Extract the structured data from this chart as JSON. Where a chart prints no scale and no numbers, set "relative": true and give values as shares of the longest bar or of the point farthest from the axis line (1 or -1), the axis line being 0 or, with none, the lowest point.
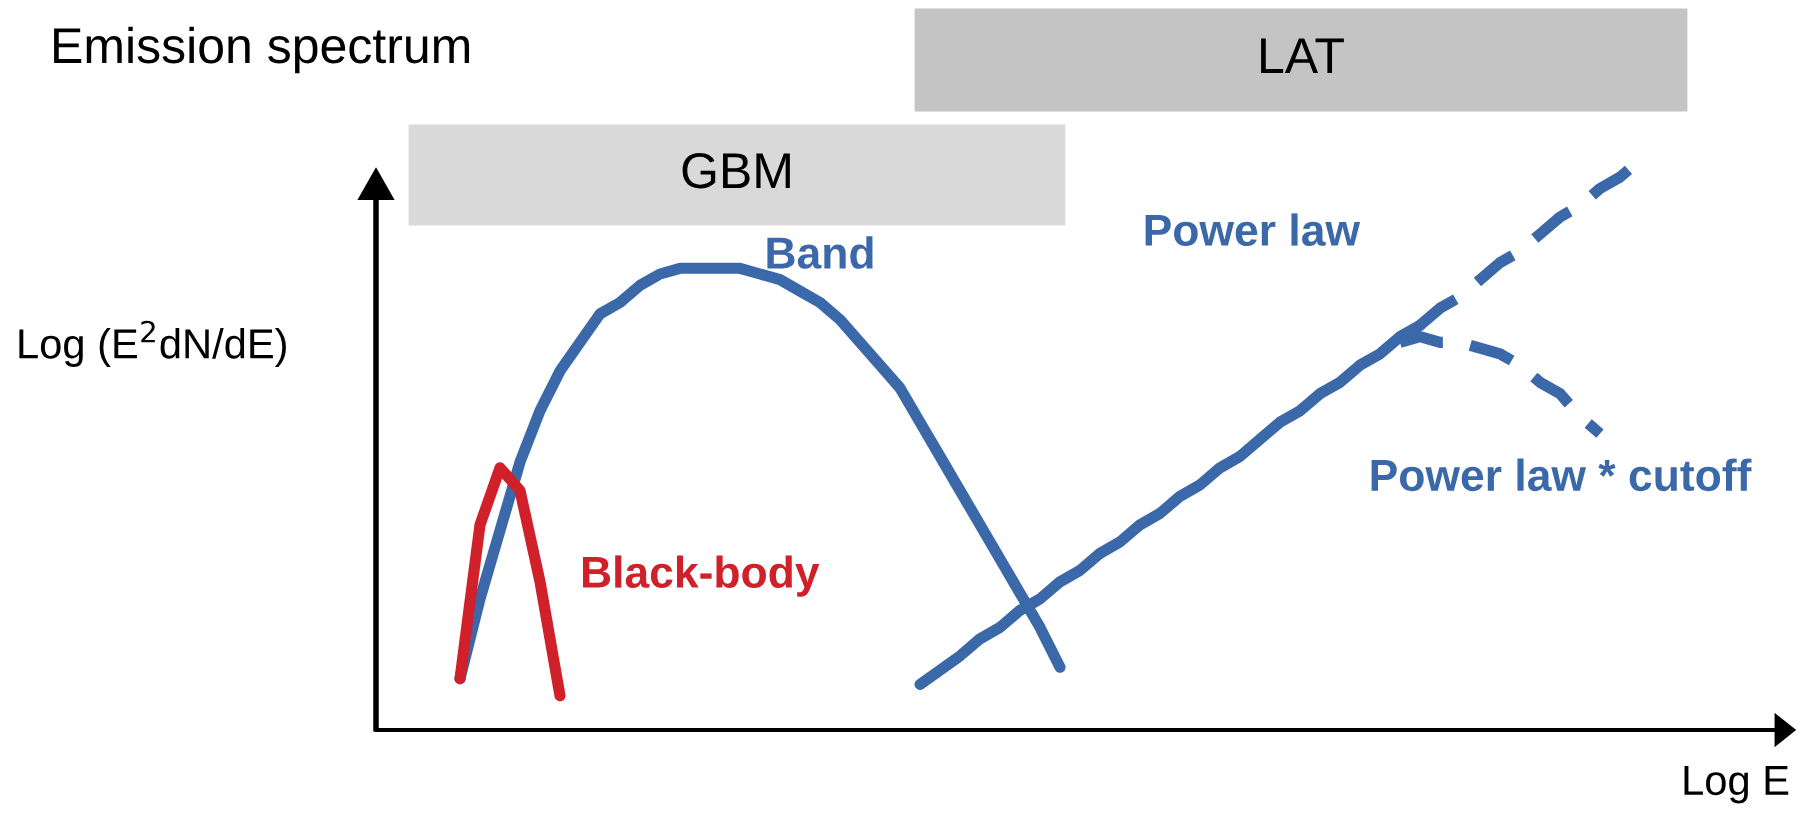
{
  "chart_data": {
    "type": "line",
    "relative": true,
    "title": "Emission spectrum",
    "xlabel": "Log E",
    "ylabel": "Log (E$^{2}$dN/dE)",
    "annotations": [
      "GBM",
      "LAT"
    ],
    "categories": [
      null,
      null,
      null,
      null,
      null,
      null,
      null,
      null,
      null,
      null,
      null,
      null,
      null,
      null,
      null,
      null,
      null,
      null,
      null,
      null,
      null,
      null,
      null,
      null,
      null,
      null,
      null,
      null,
      null,
      null,
      null,
      null,
      null,
      null,
      null,
      null,
      null,
      null,
      null,
      null,
      null,
      null,
      null,
      null,
      null,
      null,
      null,
      null,
      null,
      null,
      null,
      null,
      null,
      null,
      null,
      null,
      null,
      null,
      null,
      null,
      null,
      null,
      null,
      null,
      null,
      null,
      null,
      null,
      null,
      null,
      null
    ],
    "series": [
      {
        "name": "Band",
        "color": "#3a68a8",
        "line_style": "solid",
        "values": [
          null,
          null,
          null,
          null,
          0.09,
          0.23,
          0.35,
          0.47,
          0.56,
          0.63,
          0.68,
          0.73,
          0.75,
          0.78,
          0.8,
          0.81,
          0.81,
          0.81,
          0.81,
          0.8,
          0.79,
          0.77,
          0.75,
          0.72,
          0.68,
          0.64,
          0.6,
          0.54,
          0.48,
          0.42,
          0.36,
          0.3,
          0.24,
          0.18,
          0.11,
          null,
          null,
          null,
          null,
          null,
          null,
          null,
          null,
          null,
          null,
          null,
          null,
          null,
          null,
          null,
          null,
          null,
          null,
          null,
          null,
          null,
          null,
          null,
          null,
          null,
          null,
          null,
          null,
          null,
          null,
          null,
          null,
          null,
          null,
          null,
          null
        ]
      },
      {
        "name": "Black-body",
        "color": "#d0202a",
        "line_style": "solid",
        "values": [
          null,
          null,
          null,
          null,
          0.09,
          0.36,
          0.46,
          0.42,
          0.26,
          0.06,
          null,
          null,
          null,
          null,
          null,
          null,
          null,
          null,
          null,
          null,
          null,
          null,
          null,
          null,
          null,
          null,
          null,
          null,
          null,
          null,
          null,
          null,
          null,
          null,
          null,
          null,
          null,
          null,
          null,
          null,
          null,
          null,
          null,
          null,
          null,
          null,
          null,
          null,
          null,
          null,
          null,
          null,
          null,
          null,
          null,
          null,
          null,
          null,
          null,
          null,
          null,
          null,
          null,
          null,
          null,
          null,
          null,
          null,
          null,
          null,
          null
        ]
      },
      {
        "name": "Power law",
        "color": "#3a68a8",
        "line_style": "solid",
        "values": [
          null,
          null,
          null,
          null,
          null,
          null,
          null,
          null,
          null,
          null,
          null,
          null,
          null,
          null,
          null,
          null,
          null,
          null,
          null,
          null,
          null,
          null,
          null,
          null,
          null,
          null,
          null,
          0.08,
          0.105,
          0.13,
          0.16,
          0.18,
          0.21,
          0.23,
          0.26,
          0.28,
          0.31,
          0.33,
          0.36,
          0.38,
          0.41,
          0.43,
          0.46,
          0.48,
          0.51,
          0.54,
          0.56,
          0.59,
          0.61,
          0.64,
          0.66,
          0.69,
          0.71,
          null,
          null,
          null,
          null,
          null,
          null,
          null,
          null,
          null,
          null,
          null,
          null,
          null,
          null,
          null,
          null,
          null,
          null
        ]
      },
      {
        "color": "#3a68a8",
        "line_style": "dashed",
        "values": [
          null,
          null,
          null,
          null,
          null,
          null,
          null,
          null,
          null,
          null,
          null,
          null,
          null,
          null,
          null,
          null,
          null,
          null,
          null,
          null,
          null,
          null,
          null,
          null,
          null,
          null,
          null,
          null,
          null,
          null,
          null,
          null,
          null,
          null,
          null,
          null,
          null,
          null,
          null,
          null,
          null,
          null,
          null,
          null,
          null,
          null,
          null,
          null,
          null,
          null,
          null,
          null,
          0.71,
          0.74,
          0.76,
          0.79,
          0.82,
          0.84,
          0.87,
          0.9,
          0.92,
          0.95,
          0.97,
          1.0,
          null,
          null,
          null,
          null,
          null,
          null,
          null
        ]
      },
      {
        "name": "Power law * cutoff",
        "color": "#3a68a8",
        "line_style": "dashed",
        "values": [
          null,
          null,
          null,
          null,
          null,
          null,
          null,
          null,
          null,
          null,
          null,
          null,
          null,
          null,
          null,
          null,
          null,
          null,
          null,
          null,
          null,
          null,
          null,
          null,
          null,
          null,
          null,
          null,
          null,
          null,
          null,
          null,
          null,
          null,
          null,
          null,
          null,
          null,
          null,
          null,
          null,
          null,
          null,
          null,
          null,
          null,
          null,
          null,
          null,
          null,
          null,
          0.68,
          0.69,
          0.68,
          0.68,
          0.67,
          0.66,
          0.64,
          0.61,
          0.59,
          0.55,
          0.52,
          null,
          null,
          null,
          null,
          null,
          null,
          null,
          null,
          null
        ]
      }
    ]
  }
}
